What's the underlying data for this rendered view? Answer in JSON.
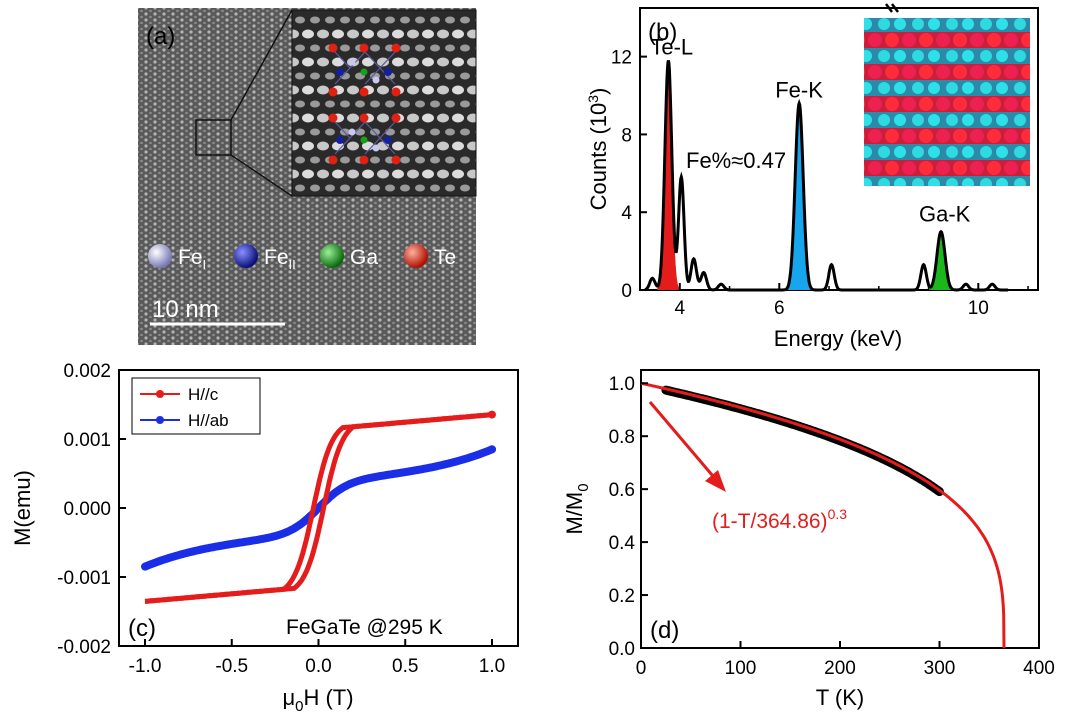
{
  "colors": {
    "red": "#e51c1c",
    "blue": "#1a2ee8",
    "cyan": "#17a6ee",
    "green": "#1bb81b",
    "black": "#000000",
    "darkred": "#b80000"
  },
  "panel_a": {
    "label": "(a)",
    "legend": [
      {
        "symbol": "Fe",
        "sub": "I",
        "color": "#c8c8f0"
      },
      {
        "symbol": "Fe",
        "sub": "II",
        "color": "#1420a0"
      },
      {
        "symbol": "Ga",
        "sub": "",
        "color": "#18a018"
      },
      {
        "symbol": "Te",
        "sub": "",
        "color": "#e02010"
      }
    ],
    "scalebar": "10 nm"
  },
  "chart_data": [
    {
      "id": "b",
      "type": "line",
      "panel_label": "(b)",
      "xlabel": "Energy (keV)",
      "ylabel_main": "Counts (10",
      "ylabel_sup": "3",
      "ylabel_end": ")",
      "xlim": [
        3.2,
        11.2
      ],
      "ylim": [
        0,
        14.5
      ],
      "xticks": [
        4,
        6,
        10
      ],
      "yticks": [
        0,
        4,
        8,
        12
      ],
      "peaks": [
        {
          "name": "Te-L",
          "center": 3.77,
          "height": 11.8,
          "width": 0.07,
          "color": "red"
        },
        {
          "name": "Fe-K",
          "center": 6.4,
          "height": 9.6,
          "width": 0.08,
          "color": "cyan"
        },
        {
          "name": "Ga-K",
          "center": 9.25,
          "height": 3.0,
          "width": 0.08,
          "color": "green"
        }
      ],
      "minor_peaks": [
        {
          "center": 3.45,
          "height": 0.6
        },
        {
          "center": 4.03,
          "height": 5.8
        },
        {
          "center": 4.28,
          "height": 1.6
        },
        {
          "center": 4.48,
          "height": 0.9
        },
        {
          "center": 4.83,
          "height": 0.3
        },
        {
          "center": 7.05,
          "height": 1.3
        },
        {
          "center": 8.9,
          "height": 1.3
        },
        {
          "center": 9.75,
          "height": 0.3
        },
        {
          "center": 10.28,
          "height": 0.3
        }
      ],
      "annotation": "Fe%≈0.47"
    },
    {
      "id": "c",
      "type": "line",
      "panel_label": "(c)",
      "xlabel_pre": "μ",
      "xlabel_sub": "0",
      "xlabel_post": "H (T)",
      "ylabel": "M(emu)",
      "xlim": [
        -1.15,
        1.15
      ],
      "ylim": [
        -0.002,
        0.002
      ],
      "xticks": [
        -1.0,
        -0.5,
        0.0,
        0.5,
        1.0
      ],
      "xtick_labels": [
        "-1.0",
        "-0.5",
        "0.0",
        "0.5",
        "1.0"
      ],
      "yticks": [
        -0.002,
        -0.001,
        0.0,
        0.001,
        0.002
      ],
      "ytick_labels": [
        "-0.002",
        "-0.001",
        "0.000",
        "0.001",
        "0.002"
      ],
      "series": [
        {
          "name": "H//c",
          "color": "red",
          "ms": 0.00123,
          "slope": 0.00022,
          "hc": 0.03,
          "sat_field": 0.17
        },
        {
          "name": "H//ab",
          "color": "blue",
          "scale": 0.00085,
          "k": 2.2
        }
      ],
      "annotation": "FeGaTe @295 K"
    },
    {
      "id": "d",
      "type": "line",
      "panel_label": "(d)",
      "xlabel": "T (K)",
      "ylabel_main": "M/M",
      "ylabel_sub": "0",
      "xlim": [
        0,
        400
      ],
      "ylim": [
        0,
        1.05
      ],
      "xticks": [
        0,
        100,
        200,
        300,
        400
      ],
      "yticks": [
        0.0,
        0.2,
        0.4,
        0.6,
        0.8,
        1.0
      ],
      "ytick_labels": [
        "0.0",
        "0.2",
        "0.4",
        "0.6",
        "0.8",
        "1.0"
      ],
      "fit": {
        "tc": 364.86,
        "beta": 0.3
      },
      "data_range": [
        25,
        300
      ],
      "annotation_main": "(1-T/364.86)",
      "annotation_sup": "0.3"
    }
  ]
}
